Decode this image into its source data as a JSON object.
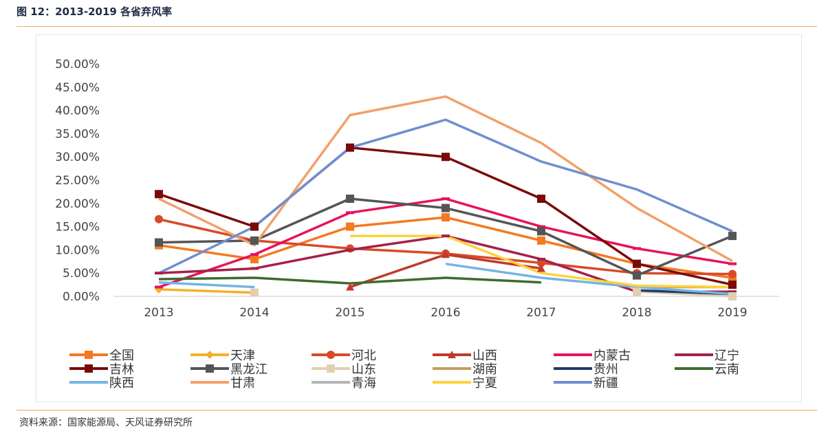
{
  "figure": {
    "title": "图 12：2013-2019 各省弃风率",
    "source": "资料来源：国家能源局、天风证券研究所"
  },
  "chart_data": {
    "type": "line",
    "x": [
      "2013",
      "2014",
      "2015",
      "2016",
      "2017",
      "2018",
      "2019"
    ],
    "ylim": [
      0,
      50
    ],
    "yticks": [
      "0.00%",
      "5.00%",
      "10.00%",
      "15.00%",
      "20.00%",
      "25.00%",
      "30.00%",
      "35.00%",
      "40.00%",
      "45.00%",
      "50.00%"
    ],
    "grid": false,
    "legend_position": "bottom",
    "series": [
      {
        "name": "全国",
        "color": "#f47920",
        "marker": "square",
        "values": [
          11,
          8,
          15,
          17,
          12,
          7,
          4
        ]
      },
      {
        "name": "天津",
        "color": "#f2b12c",
        "marker": "diamond",
        "values": [
          1.5,
          0.8,
          null,
          null,
          null,
          null,
          null
        ]
      },
      {
        "name": "河北",
        "color": "#d94a27",
        "marker": "circle",
        "values": [
          16.6,
          12,
          10.3,
          9.2,
          7.2,
          5,
          4.8
        ]
      },
      {
        "name": "山西",
        "color": "#c0392b",
        "marker": "triangle",
        "values": [
          null,
          null,
          2,
          9,
          6,
          null,
          null
        ]
      },
      {
        "name": "内蒙古",
        "color": "#e8135a",
        "marker": "dash",
        "values": [
          2,
          9,
          18,
          21,
          15,
          10.3,
          7
        ]
      },
      {
        "name": "辽宁",
        "color": "#a3214a",
        "marker": "dash",
        "values": [
          5,
          6,
          10,
          13,
          8,
          1,
          1
        ]
      },
      {
        "name": "吉林",
        "color": "#7a0a0a",
        "marker": "square",
        "values": [
          22,
          15,
          32,
          30,
          21,
          7,
          2.5
        ]
      },
      {
        "name": "黑龙江",
        "color": "#555555",
        "marker": "square",
        "values": [
          11.6,
          12,
          21,
          19,
          14,
          4.5,
          13
        ]
      },
      {
        "name": "山东",
        "color": "#e0cfb0",
        "marker": "square",
        "values": [
          null,
          0.8,
          null,
          null,
          null,
          1,
          0
        ]
      },
      {
        "name": "湖南",
        "color": "#c89c5c",
        "marker": "none",
        "values": [
          null,
          null,
          null,
          null,
          null,
          2,
          2
        ]
      },
      {
        "name": "贵州",
        "color": "#1f3a6b",
        "marker": "none",
        "values": [
          null,
          null,
          null,
          null,
          null,
          1.3,
          0.5
        ]
      },
      {
        "name": "云南",
        "color": "#3f6b2f",
        "marker": "none",
        "values": [
          3.7,
          4,
          2.8,
          4,
          3,
          null,
          null
        ]
      },
      {
        "name": "陕西",
        "color": "#74b4e3",
        "marker": "none",
        "values": [
          3,
          2,
          null,
          7,
          4,
          2,
          0.5
        ]
      },
      {
        "name": "甘肃",
        "color": "#f2a06a",
        "marker": "none",
        "values": [
          21,
          11,
          39,
          43,
          33,
          19,
          7.6
        ]
      },
      {
        "name": "青海",
        "color": "#b5b5b5",
        "marker": "none",
        "values": [
          null,
          null,
          null,
          null,
          null,
          null,
          null
        ]
      },
      {
        "name": "宁夏",
        "color": "#ffd23a",
        "marker": "none",
        "values": [
          null,
          null,
          13,
          13,
          5,
          2.3,
          2
        ]
      },
      {
        "name": "新疆",
        "color": "#6f8fcf",
        "marker": "none",
        "values": [
          5,
          15,
          32,
          38,
          29,
          23,
          14
        ]
      }
    ]
  }
}
